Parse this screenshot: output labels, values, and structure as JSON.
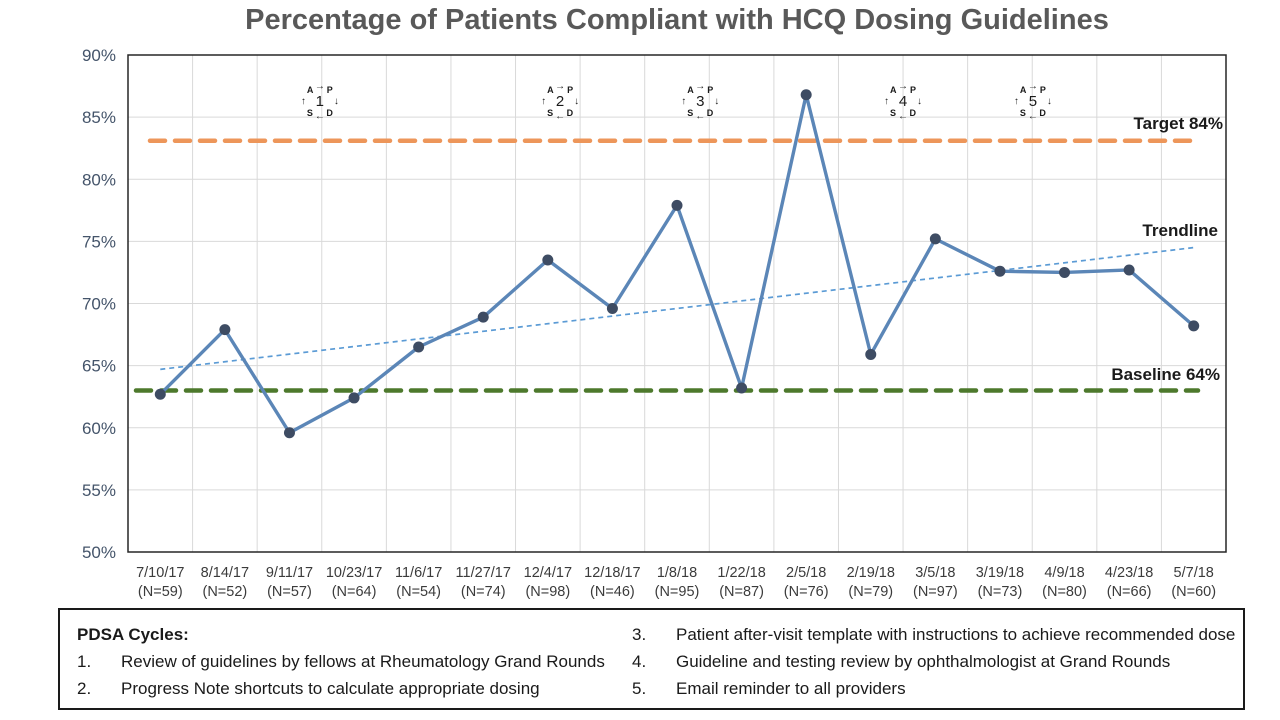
{
  "title": "Percentage of Patients Compliant with HCQ Dosing Guidelines",
  "chart_data": {
    "type": "line",
    "title": "Percentage of Patients Compliant with HCQ Dosing Guidelines",
    "categories": [
      "7/10/17",
      "8/14/17",
      "9/11/17",
      "10/23/17",
      "11/6/17",
      "11/27/17",
      "12/4/17",
      "12/18/17",
      "1/8/18",
      "1/22/18",
      "2/5/18",
      "2/19/18",
      "3/5/18",
      "3/19/18",
      "4/9/18",
      "4/23/18",
      "5/7/18"
    ],
    "n_labels": [
      "(N=59)",
      "(N=52)",
      "(N=57)",
      "(N=64)",
      "(N=54)",
      "(N=74)",
      "(N=98)",
      "(N=46)",
      "(N=95)",
      "(N=87)",
      "(N=76)",
      "(N=79)",
      "(N=97)",
      "(N=73)",
      "(N=80)",
      "(N=66)",
      "(N=60)"
    ],
    "values": [
      62.7,
      67.9,
      59.6,
      62.4,
      66.5,
      68.9,
      73.5,
      69.6,
      77.9,
      63.2,
      86.8,
      65.9,
      75.2,
      72.6,
      72.5,
      72.7,
      68.2
    ],
    "ylim": [
      50,
      90
    ],
    "ytick_labels": [
      "90%",
      "85%",
      "80%",
      "75%",
      "70%",
      "65%",
      "60%",
      "55%",
      "50%"
    ],
    "ytick_values": [
      90,
      85,
      80,
      75,
      70,
      65,
      60,
      55,
      50
    ],
    "grid": true,
    "target_line": {
      "label": "Target 84%",
      "drawn_at": 83.1
    },
    "baseline_line": {
      "label": "Baseline 64%",
      "drawn_at": 63.0
    },
    "trendline": {
      "label": "Trendline",
      "start_value": 64.7,
      "end_value": 74.5
    },
    "pdsa_markers": [
      {
        "label": "1",
        "pos": 2.97
      },
      {
        "label": "2",
        "pos": 6.69
      },
      {
        "label": "3",
        "pos": 8.86
      },
      {
        "label": "4",
        "pos": 12.0
      },
      {
        "label": "5",
        "pos": 14.01
      }
    ],
    "pdsa_marker_value": 86.2,
    "pdsa_icon": {
      "top_left": "A",
      "top_right": "P",
      "bottom_left": "S",
      "bottom_right": "D",
      "arrow_top": "→",
      "arrow_right": "↓",
      "arrow_bottom": "←",
      "arrow_left": "↑"
    }
  },
  "colors": {
    "series": "#5B86B7",
    "marker": "#3E4C63",
    "trendline": "#5B9BD5",
    "target": "#ED965A",
    "baseline": "#4D792C",
    "grid": "#D9D9D9",
    "plot_border": "#262626",
    "title_text": "#595959",
    "yaxis_text": "#44546A",
    "xaxis_text": "#3B3B3B"
  },
  "legend": {
    "heading": "PDSA Cycles:",
    "items": [
      {
        "num": "1.",
        "text": "Review of guidelines by fellows at Rheumatology Grand Rounds"
      },
      {
        "num": "2.",
        "text": "Progress Note shortcuts to calculate appropriate dosing"
      },
      {
        "num": "3.",
        "text": "Patient after-visit template with instructions to achieve recommended dose"
      },
      {
        "num": "4.",
        "text": "Guideline and testing review by ophthalmologist at Grand Rounds"
      },
      {
        "num": "5.",
        "text": "Email reminder to all providers"
      }
    ]
  }
}
